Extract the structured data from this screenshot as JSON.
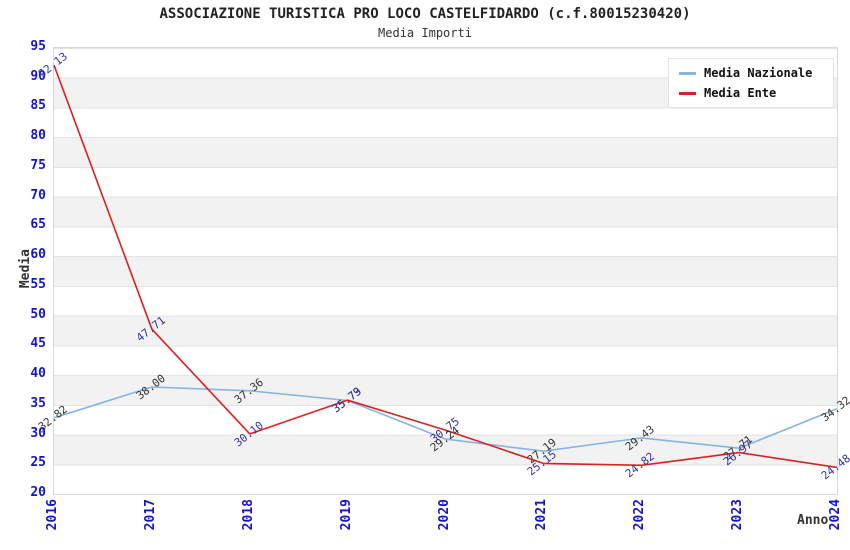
{
  "title": "ASSOCIAZIONE TURISTICA PRO LOCO CASTELFIDARDO (c.f.80015230420)",
  "subtitle": "Media Importi",
  "colors": {
    "nazionale_line": "#85B5E2",
    "ente_line": "#DE1F1F",
    "axis_tick_labels": "#1414CC",
    "nazionale_point_labels": "#333333",
    "ente_point_labels": "#333399",
    "grid_band": "#F2F2F2",
    "grid_line": "#E3E3E3"
  },
  "chart_data": {
    "type": "line",
    "title": "ASSOCIAZIONE TURISTICA PRO LOCO CASTELFIDARDO (c.f.80015230420)",
    "subtitle": "Media Importi",
    "x": [
      2016,
      2017,
      2018,
      2019,
      2020,
      2021,
      2022,
      2023,
      2024
    ],
    "xlabel": "Anno",
    "ylabel": "Media",
    "ylim": [
      20,
      95
    ],
    "ytick_step": 5,
    "grid": "horizontal gridlines with alternating shaded bands every 5 units",
    "legend_position": "top-right",
    "series": [
      {
        "name": "Media Nazionale",
        "color": "#85B5E2",
        "label_color": "#333333",
        "values": [
          32.82,
          38.0,
          37.36,
          35.73,
          29.24,
          27.19,
          29.43,
          27.71,
          34.32
        ]
      },
      {
        "name": "Media Ente",
        "color": "#DE1F1F",
        "label_color": "#333399",
        "values": [
          92.13,
          47.71,
          30.1,
          35.79,
          30.75,
          25.15,
          24.82,
          26.97,
          24.48
        ]
      }
    ]
  }
}
